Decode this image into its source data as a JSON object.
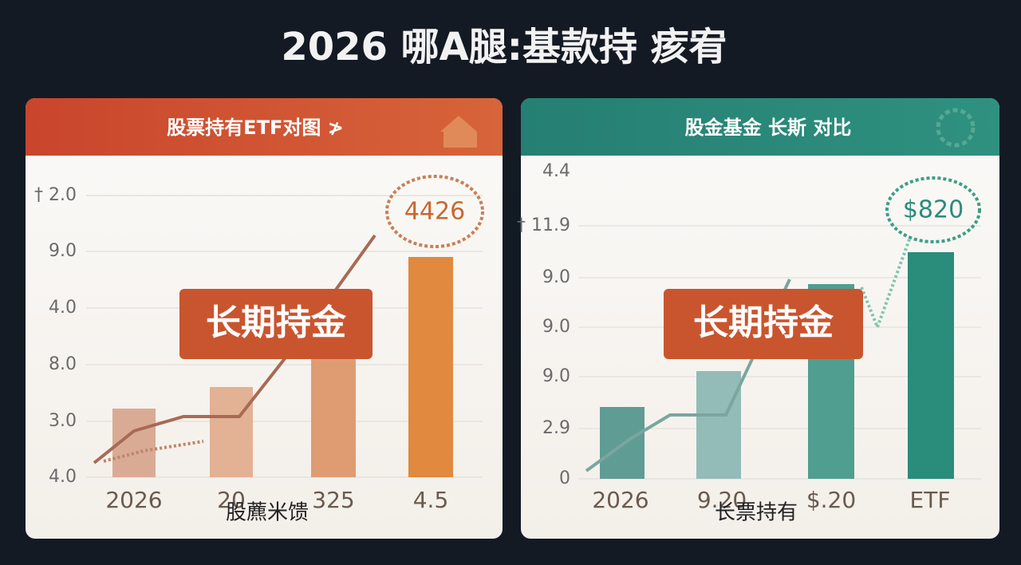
{
  "title": "2026 哪A腿:基款持 痎宥",
  "panels": [
    {
      "header": "股票持有ETF对图 ≯",
      "y_labels": [
        "† 2.0",
        "9.0",
        "4.0",
        "8.0",
        "3.0",
        "4.0"
      ],
      "x_labels": [
        "2026",
        "20",
        "325",
        "4.5"
      ],
      "callout": "4426",
      "badge": "长期持金",
      "caption": "股藨米馈"
    },
    {
      "header": "股金基金 长斯 对比",
      "y_labels": [
        "4.4",
        "† 11.9",
        "9.0",
        "9.0",
        "9.0",
        "2.9",
        "0"
      ],
      "x_labels": [
        "2026",
        "9.20",
        "$.20",
        "ETF"
      ],
      "callout": "$820",
      "badge": "长期持金",
      "caption": "长票持有"
    }
  ]
}
